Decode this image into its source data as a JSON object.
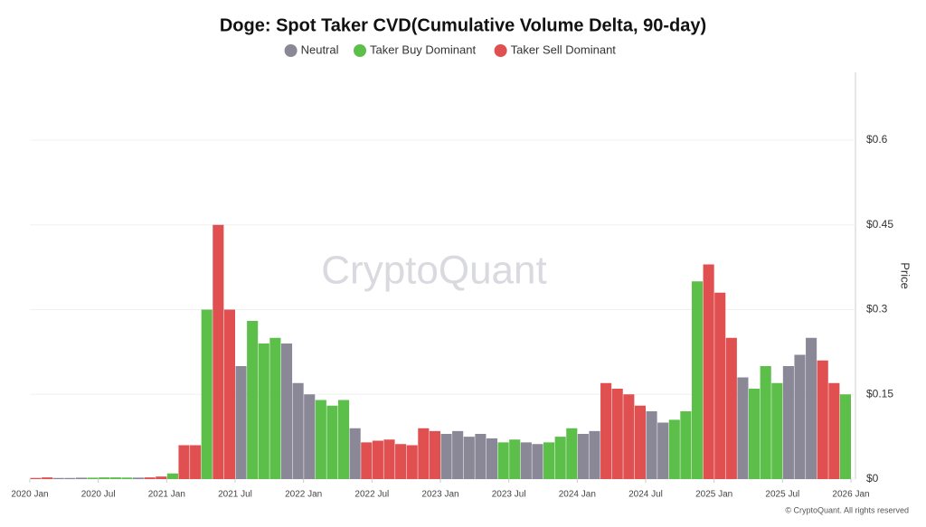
{
  "chart_data": {
    "type": "bar",
    "title": "Doge: Spot Taker CVD(Cumulative Volume Delta, 90-day)",
    "watermark": "CryptoQuant",
    "footer": "© CryptoQuant. All rights reserved",
    "y_label": "Price",
    "x": [
      "2020-01",
      "2020-02",
      "2020-03",
      "2020-04",
      "2020-05",
      "2020-06",
      "2020-07",
      "2020-08",
      "2020-09",
      "2020-10",
      "2020-11",
      "2020-12",
      "2021-01",
      "2021-02",
      "2021-03",
      "2021-04",
      "2021-05",
      "2021-06",
      "2021-07",
      "2021-08",
      "2021-09",
      "2021-10",
      "2021-11",
      "2021-12",
      "2022-01",
      "2022-02",
      "2022-03",
      "2022-04",
      "2022-05",
      "2022-06",
      "2022-07",
      "2022-08",
      "2022-09",
      "2022-10",
      "2022-11",
      "2022-12",
      "2023-01",
      "2023-02",
      "2023-03",
      "2023-04",
      "2023-05",
      "2023-06",
      "2023-07",
      "2023-08",
      "2023-09",
      "2023-10",
      "2023-11",
      "2023-12",
      "2024-01",
      "2024-02",
      "2024-03",
      "2024-04",
      "2024-05",
      "2024-06",
      "2024-07",
      "2024-08",
      "2024-09",
      "2024-10",
      "2024-11",
      "2024-12",
      "2025-01",
      "2025-02",
      "2025-03",
      "2025-04",
      "2025-05",
      "2025-06",
      "2025-07",
      "2025-08",
      "2025-09",
      "2025-10",
      "2025-11",
      "2025-12"
    ],
    "series": [
      {
        "name": "Neutral",
        "color": "#8a8797",
        "values": [
          null,
          null,
          0.002,
          0.002,
          0.0025,
          null,
          null,
          null,
          null,
          0.0026,
          null,
          null,
          null,
          null,
          null,
          null,
          null,
          null,
          0.2,
          null,
          null,
          null,
          0.24,
          0.17,
          0.15,
          null,
          null,
          null,
          0.09,
          null,
          null,
          null,
          null,
          null,
          null,
          null,
          0.08,
          0.085,
          0.075,
          0.08,
          0.072,
          null,
          null,
          0.065,
          0.062,
          null,
          null,
          null,
          0.08,
          0.085,
          null,
          null,
          null,
          null,
          0.12,
          0.1,
          null,
          null,
          null,
          null,
          null,
          null,
          0.18,
          null,
          null,
          null,
          0.2,
          0.22,
          0.25,
          null,
          null,
          null
        ]
      },
      {
        "name": "Taker Buy Dominant",
        "color": "#5cbf4a",
        "values": [
          null,
          null,
          null,
          null,
          null,
          0.0025,
          0.003,
          0.003,
          0.0027,
          null,
          null,
          null,
          0.01,
          null,
          null,
          0.3,
          null,
          null,
          null,
          0.28,
          0.24,
          0.25,
          null,
          null,
          null,
          0.14,
          0.13,
          0.14,
          null,
          null,
          null,
          null,
          null,
          null,
          null,
          null,
          null,
          null,
          null,
          null,
          null,
          0.065,
          0.07,
          null,
          null,
          0.065,
          0.075,
          0.09,
          null,
          null,
          null,
          null,
          null,
          null,
          null,
          null,
          0.105,
          0.12,
          0.35,
          null,
          null,
          null,
          null,
          0.16,
          0.2,
          0.17,
          null,
          null,
          null,
          null,
          null,
          0.15
        ]
      },
      {
        "name": "Taker Sell Dominant",
        "color": "#e05050",
        "values": [
          0.002,
          0.003,
          null,
          null,
          null,
          null,
          null,
          null,
          null,
          null,
          0.003,
          0.0045,
          null,
          0.06,
          0.06,
          null,
          0.45,
          0.3,
          null,
          null,
          null,
          null,
          null,
          null,
          null,
          null,
          null,
          null,
          null,
          0.065,
          0.068,
          0.07,
          0.062,
          0.06,
          0.09,
          0.085,
          null,
          null,
          null,
          null,
          null,
          null,
          null,
          null,
          null,
          null,
          null,
          null,
          null,
          null,
          0.17,
          0.16,
          0.15,
          0.13,
          null,
          null,
          null,
          null,
          null,
          0.38,
          0.33,
          0.25,
          null,
          null,
          null,
          null,
          null,
          null,
          null,
          0.21,
          0.17,
          null
        ]
      }
    ],
    "xlim": [
      "2020-01",
      "2026-01"
    ],
    "xticks": [
      {
        "value": "2020-01",
        "label": "2020 Jan"
      },
      {
        "value": "2020-07",
        "label": "2020 Jul"
      },
      {
        "value": "2021-01",
        "label": "2021 Jan"
      },
      {
        "value": "2021-07",
        "label": "2021 Jul"
      },
      {
        "value": "2022-01",
        "label": "2022 Jan"
      },
      {
        "value": "2022-07",
        "label": "2022 Jul"
      },
      {
        "value": "2023-01",
        "label": "2023 Jan"
      },
      {
        "value": "2023-07",
        "label": "2023 Jul"
      },
      {
        "value": "2024-01",
        "label": "2024 Jan"
      },
      {
        "value": "2024-07",
        "label": "2024 Jul"
      },
      {
        "value": "2025-01",
        "label": "2025 Jan"
      },
      {
        "value": "2025-07",
        "label": "2025 Jul"
      },
      {
        "value": "2026-01",
        "label": "2026 Jan"
      }
    ],
    "ylim": [
      0,
      0.72
    ],
    "yticks": [
      {
        "value": 0,
        "label": "$0"
      },
      {
        "value": 0.15,
        "label": "$0.15"
      },
      {
        "value": 0.3,
        "label": "$0.3"
      },
      {
        "value": 0.45,
        "label": "$0.45"
      },
      {
        "value": 0.6,
        "label": "$0.6"
      }
    ],
    "grid": true,
    "legend": "top"
  }
}
